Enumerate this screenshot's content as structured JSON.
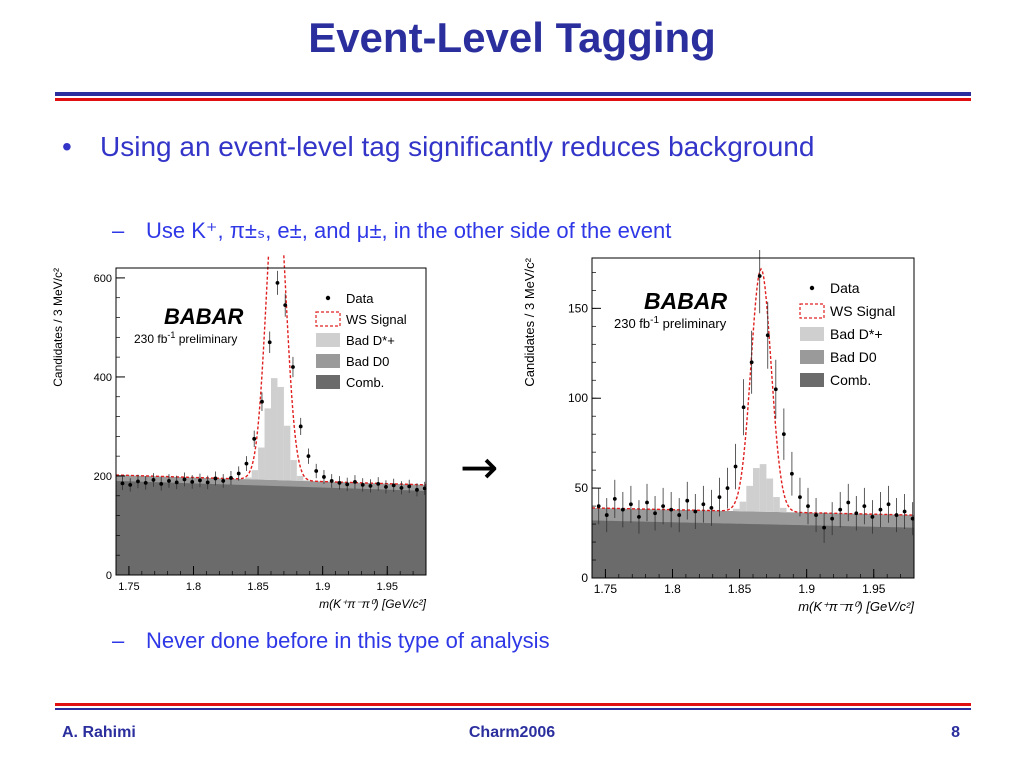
{
  "slide": {
    "title": "Event-Level Tagging",
    "bullet_marker": "•",
    "bullet_text": "Using an event-level tag significantly reduces background",
    "sub1": {
      "dash": "–",
      "text": "Use K⁺, π±ₛ, e±, and μ±, in the other side of the event"
    },
    "sub2": {
      "dash": "–",
      "text": "Never done before in this type of analysis"
    },
    "arrow": "→",
    "footer": {
      "author": "A. Rahimi",
      "conference": "Charm2006",
      "page": "8"
    }
  },
  "chart_data": [
    {
      "type": "histogram",
      "logo": "BABAR",
      "lumi": "230 fb",
      "lumi_sup": "-1",
      "lumi_suffix": " preliminary",
      "ylabel": "Candidates / 3 MeV/c²",
      "xlabel": "m(K⁺π⁻π⁰) [GeV/c²]",
      "xlim": [
        1.74,
        1.98
      ],
      "ylim": [
        0,
        620
      ],
      "xticks": [
        1.75,
        1.8,
        1.85,
        1.9,
        1.95
      ],
      "yticks": [
        0,
        200,
        400,
        600
      ],
      "legend": [
        "Data",
        "WS Signal",
        "Bad D*+",
        "Bad D0",
        "Comb."
      ],
      "colors": {
        "comb": "#6b6b6b",
        "badd0": "#9a9a9a",
        "baddstar": "#cfcfcf",
        "signal": "#e02020",
        "data": "#000000"
      },
      "comb_level": [
        190,
        170
      ],
      "badd0_offset": 12,
      "peak": {
        "mean": 1.864,
        "sigma": 0.0075,
        "baddstar_height": 210,
        "signal_height": 410
      },
      "data_points": [
        [
          1.745,
          185
        ],
        [
          1.751,
          182
        ],
        [
          1.757,
          189
        ],
        [
          1.763,
          186
        ],
        [
          1.769,
          192
        ],
        [
          1.775,
          184
        ],
        [
          1.781,
          190
        ],
        [
          1.787,
          187
        ],
        [
          1.793,
          193
        ],
        [
          1.799,
          188
        ],
        [
          1.805,
          191
        ],
        [
          1.811,
          187
        ],
        [
          1.817,
          195
        ],
        [
          1.823,
          190
        ],
        [
          1.829,
          196
        ],
        [
          1.835,
          205
        ],
        [
          1.841,
          225
        ],
        [
          1.847,
          275
        ],
        [
          1.853,
          350
        ],
        [
          1.859,
          470
        ],
        [
          1.865,
          590
        ],
        [
          1.871,
          545
        ],
        [
          1.877,
          420
        ],
        [
          1.883,
          300
        ],
        [
          1.889,
          240
        ],
        [
          1.895,
          210
        ],
        [
          1.901,
          198
        ],
        [
          1.907,
          190
        ],
        [
          1.913,
          186
        ],
        [
          1.919,
          183
        ],
        [
          1.925,
          188
        ],
        [
          1.931,
          182
        ],
        [
          1.937,
          180
        ],
        [
          1.943,
          184
        ],
        [
          1.949,
          178
        ],
        [
          1.955,
          181
        ],
        [
          1.961,
          176
        ],
        [
          1.967,
          179
        ],
        [
          1.973,
          172
        ],
        [
          1.979,
          175
        ]
      ]
    },
    {
      "type": "histogram",
      "logo": "BABAR",
      "lumi": "230 fb",
      "lumi_sup": "-1",
      "lumi_suffix": " preliminary",
      "ylabel": "Candidates / 3 MeV/c²",
      "xlabel": "m(K⁺π⁻π⁰) [GeV/c²]",
      "xlim": [
        1.74,
        1.98
      ],
      "ylim": [
        0,
        178
      ],
      "xticks": [
        1.75,
        1.8,
        1.85,
        1.9,
        1.95
      ],
      "yticks": [
        0,
        50,
        100,
        150
      ],
      "legend": [
        "Data",
        "WS Signal",
        "Bad D*+",
        "Bad D0",
        "Comb."
      ],
      "colors": {
        "comb": "#6b6b6b",
        "badd0": "#9a9a9a",
        "baddstar": "#cfcfcf",
        "signal": "#e02020",
        "data": "#000000"
      },
      "comb_level": [
        32,
        28
      ],
      "badd0_offset": 7,
      "peak": {
        "mean": 1.866,
        "sigma": 0.0075,
        "baddstar_height": 27,
        "signal_height": 108
      },
      "data_points": [
        [
          1.745,
          40
        ],
        [
          1.751,
          35
        ],
        [
          1.757,
          44
        ],
        [
          1.763,
          38
        ],
        [
          1.769,
          41
        ],
        [
          1.775,
          34
        ],
        [
          1.781,
          42
        ],
        [
          1.787,
          36
        ],
        [
          1.793,
          40
        ],
        [
          1.799,
          38
        ],
        [
          1.805,
          35
        ],
        [
          1.811,
          43
        ],
        [
          1.817,
          37
        ],
        [
          1.823,
          41
        ],
        [
          1.829,
          39
        ],
        [
          1.835,
          45
        ],
        [
          1.841,
          50
        ],
        [
          1.847,
          62
        ],
        [
          1.853,
          95
        ],
        [
          1.859,
          120
        ],
        [
          1.865,
          168
        ],
        [
          1.871,
          135
        ],
        [
          1.877,
          105
        ],
        [
          1.883,
          80
        ],
        [
          1.889,
          58
        ],
        [
          1.895,
          45
        ],
        [
          1.901,
          40
        ],
        [
          1.907,
          35
        ],
        [
          1.913,
          28
        ],
        [
          1.919,
          33
        ],
        [
          1.925,
          38
        ],
        [
          1.931,
          42
        ],
        [
          1.937,
          36
        ],
        [
          1.943,
          40
        ],
        [
          1.949,
          34
        ],
        [
          1.955,
          38
        ],
        [
          1.961,
          41
        ],
        [
          1.967,
          35
        ],
        [
          1.973,
          37
        ],
        [
          1.979,
          33
        ]
      ]
    }
  ]
}
